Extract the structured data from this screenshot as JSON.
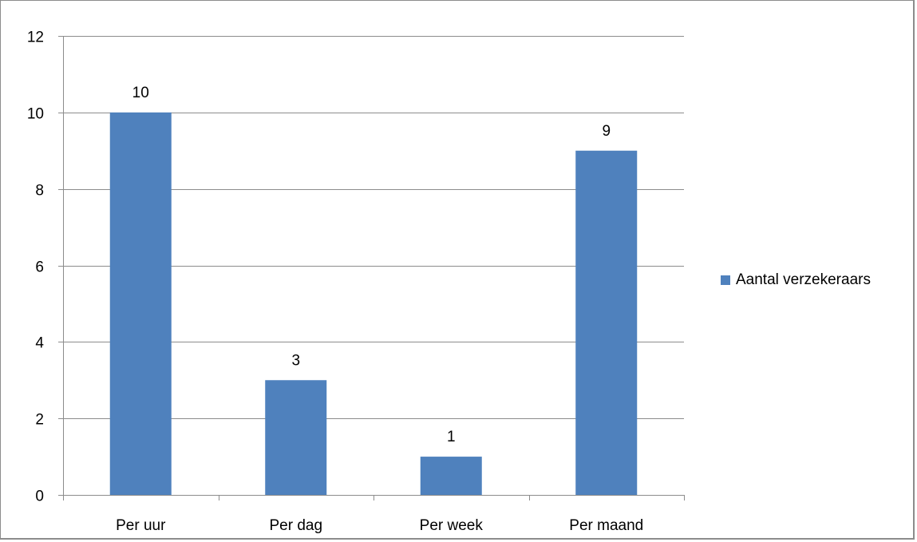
{
  "chart_data": {
    "type": "bar",
    "categories": [
      "Per uur",
      "Per dag",
      "Per week",
      "Per maand"
    ],
    "series": [
      {
        "name": "Aantal verzekeraars",
        "values": [
          10,
          3,
          1,
          9
        ],
        "color": "#4F81BD"
      }
    ],
    "title": "",
    "xlabel": "",
    "ylabel": "",
    "ylim": [
      0,
      12
    ],
    "yticks": [
      0,
      2,
      4,
      6,
      8,
      10,
      12
    ],
    "grid": true,
    "legend": "right",
    "data_labels": true
  },
  "colors": {
    "gridline": "#8c8c8c",
    "axis": "#8c8c8c",
    "bar": "#4F81BD"
  }
}
